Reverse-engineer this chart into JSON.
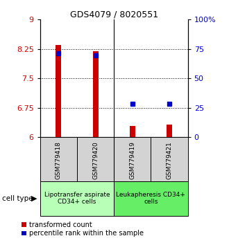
{
  "title": "GDS4079 / 8020551",
  "samples": [
    "GSM779418",
    "GSM779420",
    "GSM779419",
    "GSM779421"
  ],
  "red_values": [
    8.35,
    8.19,
    6.28,
    6.33
  ],
  "blue_values": [
    8.14,
    8.08,
    6.85,
    6.86
  ],
  "ylim": [
    6.0,
    9.0
  ],
  "y_ticks_left": [
    6,
    6.75,
    7.5,
    8.25,
    9
  ],
  "y_ticks_right": [
    0,
    25,
    50,
    75,
    100
  ],
  "right_ylim": [
    0,
    100
  ],
  "group1_label": "Lipotransfer aspirate\nCD34+ cells",
  "group2_label": "Leukapheresis CD34+\ncells",
  "group1_color": "#b8ffb8",
  "group2_color": "#66ee66",
  "sample_box_color": "#d3d3d3",
  "red_color": "#cc0000",
  "blue_color": "#0000cc",
  "legend_red_label": "transformed count",
  "legend_blue_label": "percentile rank within the sample",
  "cell_type_label": "cell type",
  "bar_width": 0.15
}
